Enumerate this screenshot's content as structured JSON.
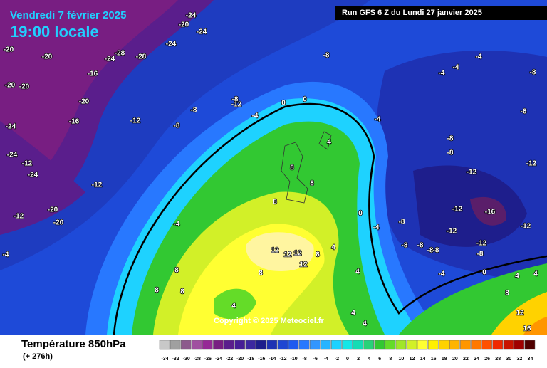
{
  "header": {
    "date": "Vendredi 7 février 2025",
    "time": "19:00 locale"
  },
  "run_info": "Run GFS 6 Z du Lundi 27 janvier 2025",
  "copyright": "Copyright © 2025 Meteociel.fr",
  "legend": {
    "title": "Température 850hPa",
    "lead_time": "(+ 276h)",
    "scale": [
      -34,
      -32,
      -30,
      -28,
      -26,
      -24,
      -22,
      -20,
      -18,
      -16,
      -14,
      -12,
      -10,
      -8,
      -6,
      -4,
      -2,
      0,
      2,
      4,
      6,
      8,
      10,
      12,
      14,
      16,
      18,
      20,
      22,
      24,
      26,
      28,
      30,
      32,
      34
    ],
    "colors": [
      "#c8c8c8",
      "#a0a0a0",
      "#8c5a8c",
      "#a050a0",
      "#962896",
      "#781e82",
      "#5a1e8c",
      "#461e96",
      "#3c28a0",
      "#1e1e8c",
      "#1e32b4",
      "#1e46d2",
      "#1e5af0",
      "#2878ff",
      "#3296ff",
      "#28b4ff",
      "#1ed2ff",
      "#14e6e6",
      "#14dcb4",
      "#28d278",
      "#32c832",
      "#64dc28",
      "#a0e628",
      "#d2f028",
      "#ffff32",
      "#fff000",
      "#ffd200",
      "#ffb400",
      "#ff9600",
      "#ff7800",
      "#ff5000",
      "#f02800",
      "#c81400",
      "#a00000",
      "#500000"
    ]
  },
  "map": {
    "contour_labels": [
      -24,
      -20,
      -24,
      -24,
      -28,
      -28,
      -24,
      -20,
      -20,
      -16,
      -20,
      -20,
      -20,
      -16,
      -24,
      -12,
      -8,
      -8,
      -8,
      -12,
      -4,
      0,
      0,
      -8,
      -24,
      -24,
      -12,
      -12,
      -20,
      -12,
      -20,
      -4,
      -4,
      8,
      8,
      8,
      12,
      12,
      12,
      12,
      8,
      8,
      8,
      8,
      8,
      4,
      4,
      4,
      0,
      -4,
      -4,
      -4,
      -4,
      -8,
      -8,
      -8,
      -8,
      -12,
      -12,
      -12,
      -12,
      -16,
      -12,
      -8,
      -8,
      -8,
      -8,
      -12,
      -8,
      -8,
      -4,
      0,
      4,
      4,
      8,
      12,
      16,
      4,
      4,
      4,
      -4
    ]
  }
}
